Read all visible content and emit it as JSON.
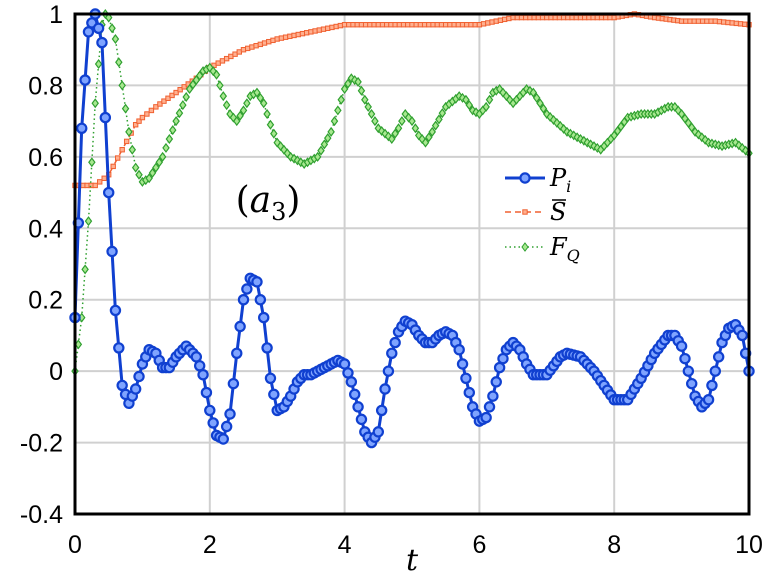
{
  "chart_data": {
    "type": "line",
    "xlabel": "t",
    "ylabel": "",
    "panel_label": "(a3)",
    "xlim": [
      0,
      10
    ],
    "ylim": [
      -0.4,
      1
    ],
    "xticks": [
      "0",
      "2",
      "4",
      "6",
      "8",
      "10"
    ],
    "yticks": [
      "-0.4",
      "-0.2",
      "0",
      "0.2",
      "0.4",
      "0.6",
      "0.8",
      "1"
    ],
    "grid": true,
    "legend_position": "center-right",
    "series": [
      {
        "name": "P_i",
        "color": "#1040d0",
        "style": "solid-circles",
        "points": [
          [
            0,
            0.15
          ],
          [
            0.1,
            0.68
          ],
          [
            0.2,
            0.95
          ],
          [
            0.3,
            1.0
          ],
          [
            0.4,
            0.92
          ],
          [
            0.5,
            0.5
          ],
          [
            0.6,
            0.17
          ],
          [
            0.7,
            -0.04
          ],
          [
            0.8,
            -0.09
          ],
          [
            0.9,
            -0.05
          ],
          [
            1.0,
            0.02
          ],
          [
            1.1,
            0.06
          ],
          [
            1.2,
            0.05
          ],
          [
            1.3,
            0.01
          ],
          [
            1.4,
            0.01
          ],
          [
            1.5,
            0.04
          ],
          [
            1.65,
            0.07
          ],
          [
            1.8,
            0.04
          ],
          [
            1.9,
            -0.01
          ],
          [
            2.0,
            -0.11
          ],
          [
            2.1,
            -0.18
          ],
          [
            2.2,
            -0.19
          ],
          [
            2.3,
            -0.12
          ],
          [
            2.4,
            0.05
          ],
          [
            2.5,
            0.2
          ],
          [
            2.6,
            0.26
          ],
          [
            2.7,
            0.25
          ],
          [
            2.8,
            0.15
          ],
          [
            2.9,
            -0.02
          ],
          [
            3.0,
            -0.11
          ],
          [
            3.1,
            -0.1
          ],
          [
            3.2,
            -0.07
          ],
          [
            3.3,
            -0.03
          ],
          [
            3.4,
            -0.01
          ],
          [
            3.5,
            -0.01
          ],
          [
            3.6,
            0.0
          ],
          [
            3.7,
            0.01
          ],
          [
            3.9,
            0.03
          ],
          [
            4.0,
            0.02
          ],
          [
            4.1,
            -0.03
          ],
          [
            4.2,
            -0.1
          ],
          [
            4.3,
            -0.17
          ],
          [
            4.4,
            -0.2
          ],
          [
            4.5,
            -0.17
          ],
          [
            4.6,
            -0.05
          ],
          [
            4.7,
            0.05
          ],
          [
            4.8,
            0.11
          ],
          [
            4.9,
            0.14
          ],
          [
            5.0,
            0.13
          ],
          [
            5.1,
            0.1
          ],
          [
            5.2,
            0.08
          ],
          [
            5.3,
            0.08
          ],
          [
            5.4,
            0.1
          ],
          [
            5.5,
            0.11
          ],
          [
            5.6,
            0.1
          ],
          [
            5.7,
            0.06
          ],
          [
            5.8,
            -0.02
          ],
          [
            5.9,
            -0.1
          ],
          [
            6.0,
            -0.14
          ],
          [
            6.1,
            -0.13
          ],
          [
            6.2,
            -0.07
          ],
          [
            6.3,
            0.01
          ],
          [
            6.4,
            0.06
          ],
          [
            6.5,
            0.08
          ],
          [
            6.6,
            0.06
          ],
          [
            6.7,
            0.02
          ],
          [
            6.8,
            -0.01
          ],
          [
            7.0,
            -0.01
          ],
          [
            7.2,
            0.04
          ],
          [
            7.3,
            0.05
          ],
          [
            7.5,
            0.04
          ],
          [
            7.7,
            0.0
          ],
          [
            8.0,
            -0.08
          ],
          [
            8.2,
            -0.08
          ],
          [
            8.4,
            -0.02
          ],
          [
            8.6,
            0.05
          ],
          [
            8.8,
            0.1
          ],
          [
            8.9,
            0.1
          ],
          [
            9.0,
            0.07
          ],
          [
            9.1,
            0.0
          ],
          [
            9.2,
            -0.07
          ],
          [
            9.3,
            -0.1
          ],
          [
            9.4,
            -0.08
          ],
          [
            9.5,
            0.0
          ],
          [
            9.6,
            0.08
          ],
          [
            9.7,
            0.12
          ],
          [
            9.8,
            0.13
          ],
          [
            9.9,
            0.1
          ],
          [
            10.0,
            0.0
          ]
        ]
      },
      {
        "name": "S̄",
        "color": "#f06030",
        "style": "dashed-squares",
        "points": [
          [
            0,
            0.52
          ],
          [
            0.3,
            0.52
          ],
          [
            0.5,
            0.55
          ],
          [
            0.7,
            0.62
          ],
          [
            0.9,
            0.69
          ],
          [
            1.0,
            0.71
          ],
          [
            1.2,
            0.74
          ],
          [
            1.5,
            0.78
          ],
          [
            1.8,
            0.82
          ],
          [
            2.0,
            0.85
          ],
          [
            2.5,
            0.9
          ],
          [
            3.0,
            0.93
          ],
          [
            3.5,
            0.95
          ],
          [
            4.0,
            0.97
          ],
          [
            4.5,
            0.97
          ],
          [
            5.0,
            0.97
          ],
          [
            5.5,
            0.97
          ],
          [
            6.0,
            0.97
          ],
          [
            6.5,
            0.99
          ],
          [
            7.0,
            0.99
          ],
          [
            7.5,
            0.99
          ],
          [
            8.0,
            0.99
          ],
          [
            8.3,
            1.0
          ],
          [
            8.6,
            0.99
          ],
          [
            9.0,
            0.98
          ],
          [
            9.5,
            0.98
          ],
          [
            10.0,
            0.97
          ]
        ]
      },
      {
        "name": "F_Q",
        "color": "#30a030",
        "style": "dotted-diamonds",
        "points": [
          [
            0,
            0.0
          ],
          [
            0.1,
            0.15
          ],
          [
            0.2,
            0.42
          ],
          [
            0.3,
            0.75
          ],
          [
            0.4,
            0.97
          ],
          [
            0.45,
            1.0
          ],
          [
            0.5,
            0.99
          ],
          [
            0.6,
            0.93
          ],
          [
            0.7,
            0.8
          ],
          [
            0.8,
            0.67
          ],
          [
            0.9,
            0.57
          ],
          [
            1.0,
            0.53
          ],
          [
            1.1,
            0.54
          ],
          [
            1.3,
            0.6
          ],
          [
            1.5,
            0.7
          ],
          [
            1.7,
            0.79
          ],
          [
            1.9,
            0.84
          ],
          [
            2.0,
            0.85
          ],
          [
            2.1,
            0.83
          ],
          [
            2.2,
            0.77
          ],
          [
            2.3,
            0.72
          ],
          [
            2.4,
            0.7
          ],
          [
            2.5,
            0.73
          ],
          [
            2.6,
            0.77
          ],
          [
            2.7,
            0.78
          ],
          [
            2.8,
            0.75
          ],
          [
            2.9,
            0.69
          ],
          [
            3.0,
            0.64
          ],
          [
            3.2,
            0.6
          ],
          [
            3.4,
            0.58
          ],
          [
            3.6,
            0.6
          ],
          [
            3.8,
            0.67
          ],
          [
            3.9,
            0.73
          ],
          [
            4.0,
            0.79
          ],
          [
            4.1,
            0.82
          ],
          [
            4.2,
            0.81
          ],
          [
            4.3,
            0.76
          ],
          [
            4.5,
            0.68
          ],
          [
            4.7,
            0.65
          ],
          [
            4.8,
            0.68
          ],
          [
            4.9,
            0.72
          ],
          [
            5.0,
            0.7
          ],
          [
            5.1,
            0.66
          ],
          [
            5.2,
            0.64
          ],
          [
            5.3,
            0.67
          ],
          [
            5.5,
            0.74
          ],
          [
            5.7,
            0.77
          ],
          [
            5.8,
            0.76
          ],
          [
            5.9,
            0.73
          ],
          [
            6.0,
            0.72
          ],
          [
            6.1,
            0.74
          ],
          [
            6.2,
            0.78
          ],
          [
            6.3,
            0.79
          ],
          [
            6.5,
            0.75
          ],
          [
            6.6,
            0.77
          ],
          [
            6.7,
            0.79
          ],
          [
            6.8,
            0.78
          ],
          [
            7.0,
            0.72
          ],
          [
            7.3,
            0.67
          ],
          [
            7.5,
            0.65
          ],
          [
            7.8,
            0.62
          ],
          [
            8.0,
            0.66
          ],
          [
            8.2,
            0.71
          ],
          [
            8.4,
            0.72
          ],
          [
            8.6,
            0.72
          ],
          [
            8.8,
            0.74
          ],
          [
            8.9,
            0.74
          ],
          [
            9.0,
            0.72
          ],
          [
            9.2,
            0.67
          ],
          [
            9.4,
            0.64
          ],
          [
            9.6,
            0.63
          ],
          [
            9.8,
            0.64
          ],
          [
            10.0,
            0.61
          ]
        ]
      }
    ]
  }
}
